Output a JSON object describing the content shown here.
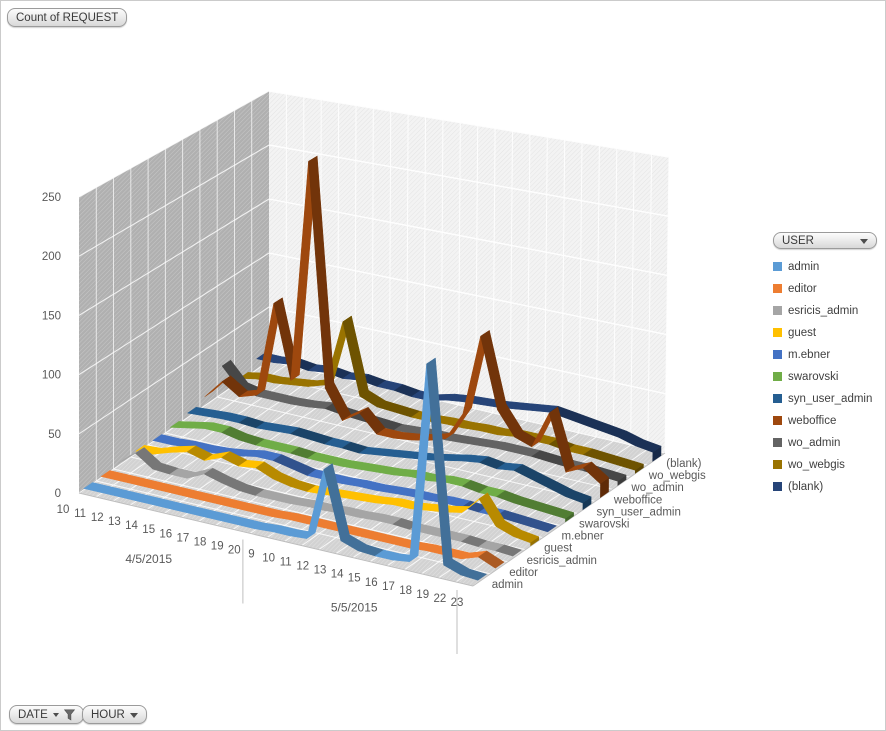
{
  "pivot": {
    "value_button": "Count of REQUEST",
    "legend_button": "USER",
    "date_button": "DATE",
    "hour_button": "HOUR"
  },
  "legend": {
    "title": "USER",
    "items": [
      {
        "label": "admin",
        "color": "#5B9BD5"
      },
      {
        "label": "editor",
        "color": "#ED7D31"
      },
      {
        "label": "esricis_admin",
        "color": "#A5A5A5"
      },
      {
        "label": "guest",
        "color": "#FFC000"
      },
      {
        "label": "m.ebner",
        "color": "#4472C4"
      },
      {
        "label": "swarovski",
        "color": "#70AD47"
      },
      {
        "label": "syn_user_admin",
        "color": "#255E91"
      },
      {
        "label": "weboffice",
        "color": "#9E480E"
      },
      {
        "label": "wo_admin",
        "color": "#636363"
      },
      {
        "label": "wo_webgis",
        "color": "#997300"
      },
      {
        "label": "(blank)",
        "color": "#264478"
      }
    ]
  },
  "chart_data": {
    "type": "area",
    "variant": "3d-area",
    "title": "Count of REQUEST",
    "value_axis": {
      "min": 0,
      "max": 250,
      "step": 50,
      "ticks": [
        "0",
        "50",
        "100",
        "150",
        "200",
        "250"
      ]
    },
    "category_groups": [
      {
        "label": "4/5/2015",
        "hours": [
          "10",
          "11",
          "12",
          "13",
          "14",
          "15",
          "16",
          "17",
          "18",
          "19",
          "20"
        ]
      },
      {
        "label": "5/5/2015",
        "hours": [
          "9",
          "10",
          "11",
          "12",
          "13",
          "14",
          "15",
          "16",
          "17",
          "18",
          "19",
          "22",
          "23"
        ]
      }
    ],
    "series_axis_labels": [
      "admin",
      "editor",
      "esricis_admin",
      "guest",
      "m.ebner",
      "swarovski",
      "syn_user_admin",
      "weboffice",
      "wo_admin",
      "wo_webgis",
      "(blank)"
    ],
    "series": [
      {
        "name": "admin",
        "color": "#5B9BD5",
        "values": [
          1,
          1,
          1,
          1,
          1,
          1,
          1,
          1,
          1,
          1,
          1,
          2,
          2,
          3,
          65,
          8,
          3,
          2,
          2,
          4,
          175,
          8,
          3,
          2
        ]
      },
      {
        "name": "editor",
        "color": "#ED7D31",
        "values": [
          1,
          1,
          1,
          1,
          1,
          1,
          1,
          1,
          1,
          1,
          1,
          2,
          2,
          2,
          2,
          2,
          2,
          2,
          2,
          3,
          3,
          3,
          8,
          2
        ]
      },
      {
        "name": "esricis_admin",
        "color": "#A5A5A5",
        "values": [
          2,
          14,
          4,
          3,
          3,
          10,
          6,
          3,
          2,
          2,
          2,
          3,
          3,
          4,
          4,
          5,
          5,
          4,
          4,
          4,
          4,
          3,
          3,
          2
        ]
      },
      {
        "name": "guest",
        "color": "#FFC000",
        "values": [
          2,
          3,
          8,
          12,
          8,
          14,
          10,
          12,
          6,
          3,
          2,
          3,
          4,
          5,
          6,
          8,
          8,
          10,
          12,
          15,
          30,
          10,
          5,
          3
        ]
      },
      {
        "name": "m.ebner",
        "color": "#4472C4",
        "values": [
          1,
          1,
          2,
          2,
          3,
          5,
          8,
          8,
          5,
          2,
          2,
          2,
          3,
          3,
          4,
          5,
          5,
          6,
          6,
          5,
          5,
          4,
          3,
          2
        ]
      },
      {
        "name": "swarovski",
        "color": "#70AD47",
        "values": [
          2,
          5,
          8,
          8,
          5,
          4,
          4,
          4,
          3,
          3,
          3,
          4,
          5,
          6,
          8,
          8,
          10,
          10,
          8,
          8,
          6,
          5,
          4,
          3
        ]
      },
      {
        "name": "syn_user_admin",
        "color": "#255E91",
        "values": [
          4,
          5,
          6,
          6,
          5,
          6,
          7,
          6,
          5,
          5,
          4,
          6,
          8,
          10,
          12,
          15,
          18,
          20,
          18,
          20,
          16,
          12,
          8,
          6
        ]
      },
      {
        "name": "weboffice",
        "color": "#9E480E",
        "values": [
          8,
          25,
          15,
          20,
          105,
          40,
          237,
          40,
          15,
          25,
          10,
          10,
          12,
          15,
          20,
          45,
          115,
          55,
          35,
          30,
          62,
          15,
          22,
          12
        ]
      },
      {
        "name": "wo_admin",
        "color": "#636363",
        "values": [
          25,
          8,
          5,
          5,
          5,
          6,
          8,
          6,
          5,
          4,
          3,
          4,
          5,
          5,
          6,
          7,
          8,
          8,
          8,
          7,
          6,
          6,
          5,
          4
        ]
      },
      {
        "name": "wo_webgis",
        "color": "#997300",
        "values": [
          3,
          6,
          6,
          8,
          10,
          15,
          75,
          12,
          6,
          5,
          4,
          4,
          5,
          5,
          6,
          6,
          8,
          8,
          8,
          6,
          6,
          5,
          4,
          3
        ]
      },
      {
        "name": "(blank)",
        "color": "#264478",
        "values": [
          10,
          10,
          12,
          10,
          12,
          10,
          12,
          10,
          10,
          8,
          8,
          12,
          14,
          15,
          16,
          18,
          20,
          22,
          20,
          18,
          16,
          14,
          10,
          8
        ]
      }
    ]
  }
}
